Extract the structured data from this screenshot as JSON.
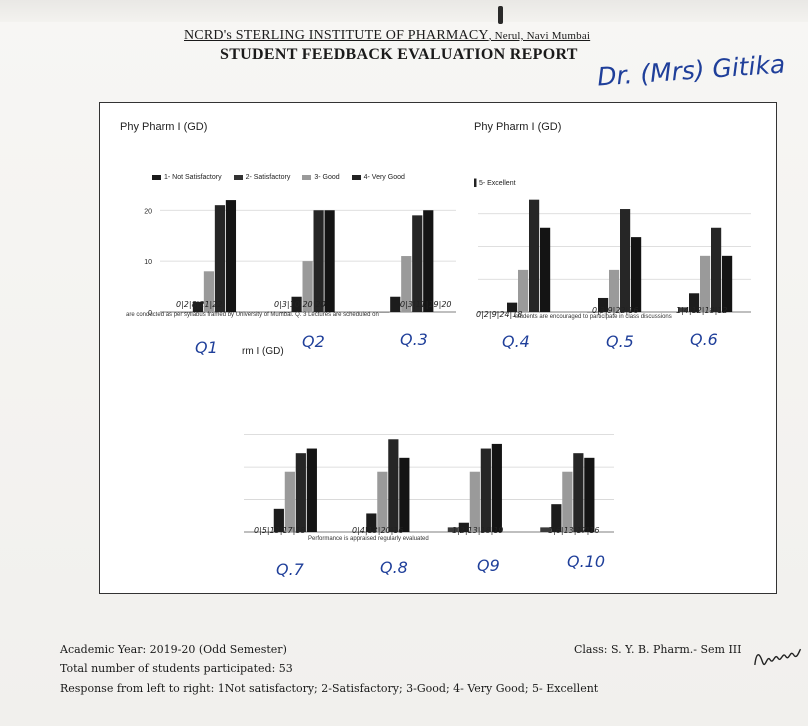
{
  "header": {
    "institute": "NCRD's STERLING INSTITUTE OF PHARMACY",
    "location": ", Nerul, Navi Mumbai",
    "title": "STUDENT FEEDBACK EVALUATION REPORT",
    "teacher_handwritten": "Dr. (Mrs) Gitika"
  },
  "panels": {
    "top_left_title": "Phy Pharm I (GD)",
    "top_right_title": "Phy Pharm I (GD)",
    "bottom_partial_title": "rm I (GD)"
  },
  "legend": {
    "items": [
      "1- Not Satisfactory",
      "2- Satisfactory",
      "3- Good",
      "4- Very Good"
    ],
    "extra": "5- Excellent"
  },
  "cut_texts": {
    "row1_left": "are conducted as per syllabus framed by University of Mumbai.   Q. 3 Lectures are scheduled on",
    "row1_right": "students are encouraged to participate in class discussions",
    "row2": "Performance is appraised regularly evaluated"
  },
  "handwritten_counts": {
    "q1": "0|2|8|21|22",
    "q2": "0|3|10|20|20",
    "q3": "0|3|11|19|20",
    "q4": "0|2|9|24|18",
    "q5": "0|3|9|22|16",
    "q6": "1|4|12|18|12",
    "q7": "0|5|13|17|18",
    "q8": "0|4|13|20|16",
    "q9": "1|2|13|18|19",
    "q10": "1|6|13|17|16"
  },
  "q_labels": [
    "Q1",
    "Q2",
    "Q.3",
    "Q.4",
    "Q.5",
    "Q.6",
    "Q.7",
    "Q.8",
    "Q9",
    "Q.10"
  ],
  "footer": {
    "academic_year": "Academic Year: 2019-20 (Odd Semester)",
    "participants": "Total number of students participated: 53",
    "response_key": "Response from left to right: 1Not satisfactory; 2-Satisfactory; 3-Good; 4- Very Good; 5- Excellent",
    "class": "Class: S. Y. B. Pharm.- Sem III"
  },
  "colors": {
    "not_satisfactory": "#3a3a3a",
    "satisfactory": "#1c1c1c",
    "good": "#9a9a9a",
    "very_good": "#262626",
    "excellent": "#141414",
    "handwriting": "#1f3f9a"
  },
  "chart_data": [
    {
      "type": "bar",
      "title": "Phy Pharm I (GD)",
      "categories": [
        "Q1",
        "Q2",
        "Q.3"
      ],
      "yticks": [
        0,
        10,
        20
      ],
      "ylim": [
        0,
        23
      ],
      "legend_position": "top",
      "series": [
        {
          "name": "1- Not Satisfactory",
          "values": [
            0,
            0,
            0
          ]
        },
        {
          "name": "2- Satisfactory",
          "values": [
            2,
            3,
            3
          ]
        },
        {
          "name": "3- Good",
          "values": [
            8,
            10,
            11
          ]
        },
        {
          "name": "4- Very Good",
          "values": [
            21,
            20,
            19
          ]
        },
        {
          "name": "5- Excellent",
          "values": [
            22,
            20,
            20
          ]
        }
      ]
    },
    {
      "type": "bar",
      "title": "Phy Pharm I (GD)",
      "categories": [
        "Q.4",
        "Q.5",
        "Q.6"
      ],
      "ylim": [
        0,
        25
      ],
      "series": [
        {
          "name": "1- Not Satisfactory",
          "values": [
            0,
            0,
            1
          ]
        },
        {
          "name": "2- Satisfactory",
          "values": [
            2,
            3,
            4
          ]
        },
        {
          "name": "3- Good",
          "values": [
            9,
            9,
            12
          ]
        },
        {
          "name": "4- Very Good",
          "values": [
            24,
            22,
            18
          ]
        },
        {
          "name": "5- Excellent",
          "values": [
            18,
            16,
            12
          ]
        }
      ]
    },
    {
      "type": "bar",
      "categories": [
        "Q.7",
        "Q.8",
        "Q9",
        "Q.10"
      ],
      "ylim": [
        0,
        22
      ],
      "series": [
        {
          "name": "1- Not Satisfactory",
          "values": [
            0,
            0,
            1,
            1
          ]
        },
        {
          "name": "2- Satisfactory",
          "values": [
            5,
            4,
            2,
            6
          ]
        },
        {
          "name": "3- Good",
          "values": [
            13,
            13,
            13,
            13
          ]
        },
        {
          "name": "4- Very Good",
          "values": [
            17,
            20,
            18,
            17
          ]
        },
        {
          "name": "5- Excellent",
          "values": [
            18,
            16,
            19,
            16
          ]
        }
      ]
    }
  ]
}
